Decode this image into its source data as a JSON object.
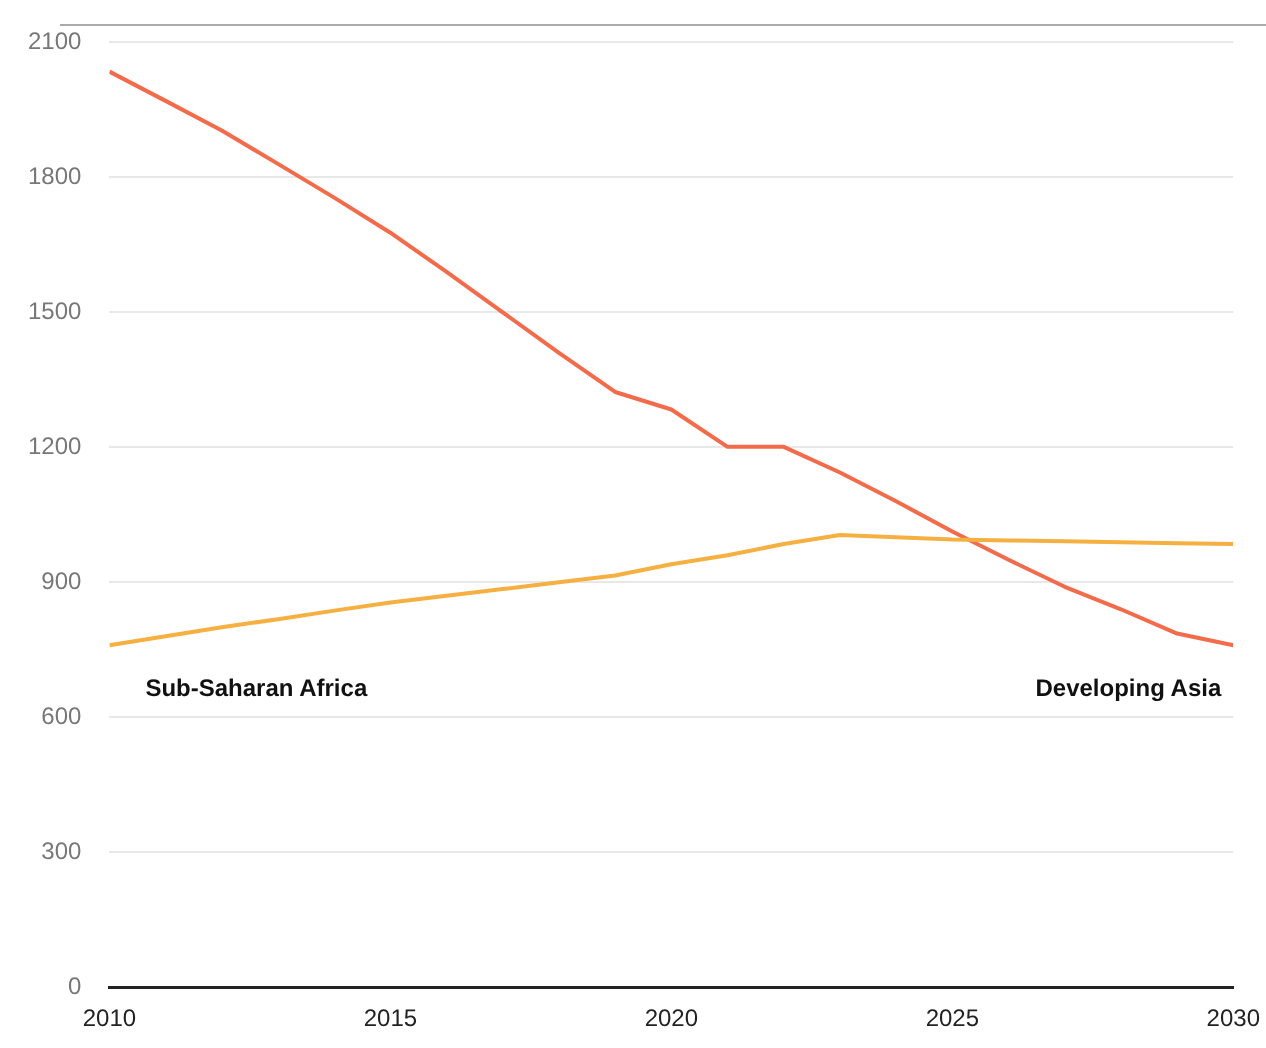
{
  "chart_data": {
    "type": "line",
    "x": [
      2010,
      2011,
      2012,
      2013,
      2014,
      2015,
      2016,
      2017,
      2018,
      2019,
      2020,
      2021,
      2022,
      2023,
      2024,
      2025,
      2026,
      2027,
      2028,
      2029,
      2030
    ],
    "series": [
      {
        "name": "Sub-Saharan Africa",
        "color": "#f5b041",
        "values": [
          760,
          780,
          800,
          818,
          837,
          855,
          870,
          885,
          900,
          915,
          940,
          960,
          985,
          1005,
          1000,
          995,
          993,
          991,
          989,
          987,
          985
        ]
      },
      {
        "name": "Developing Asia",
        "color": "#f26b4a",
        "values": [
          2035,
          1970,
          1904,
          1830,
          1755,
          1677,
          1590,
          1500,
          1410,
          1323,
          1284,
          1201,
          1201,
          1144,
          1080,
          1013,
          950,
          890,
          840,
          786,
          760
        ]
      }
    ],
    "xlim": [
      2010,
      2030
    ],
    "xticks": [
      2010,
      2015,
      2020,
      2025,
      2030
    ],
    "ylim": [
      0,
      2100
    ],
    "yticks": [
      0,
      300,
      600,
      900,
      1200,
      1500,
      1800,
      2100
    ],
    "grid": "y",
    "legend": false,
    "marker": "none",
    "line_style": "solid"
  }
}
